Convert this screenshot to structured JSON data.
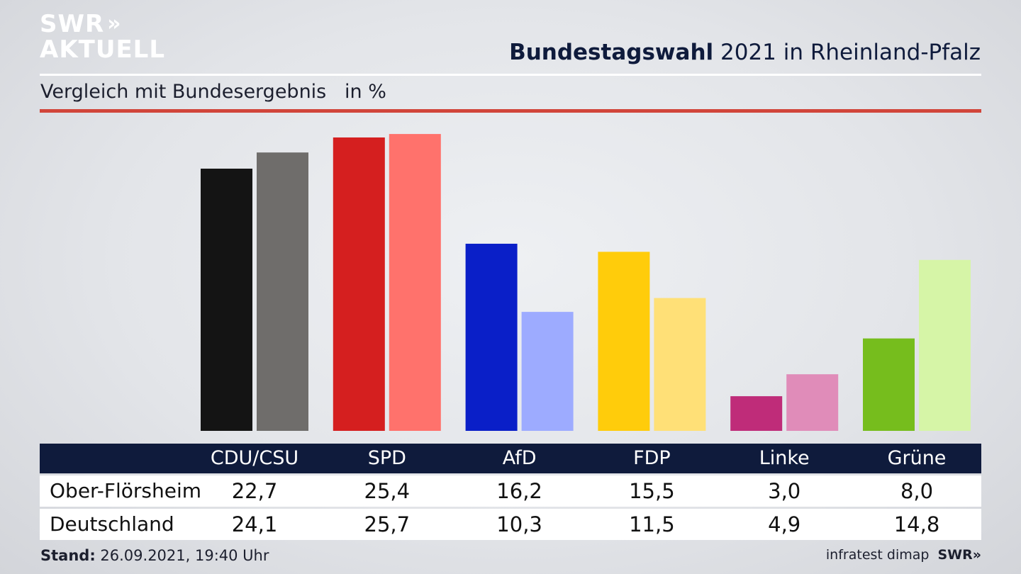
{
  "logo": {
    "line1": "SWR",
    "chevrons": "»",
    "line2": "AKTUELL"
  },
  "header": {
    "title_bold": "Bundestagswahl",
    "title_rest": " 2021 in Rheinland-Pfalz"
  },
  "subtitle": {
    "text": "Vergleich mit Bundesergebnis",
    "unit": "in %"
  },
  "footer": {
    "stand_label": "Stand:",
    "stand_value": " 26.09.2021, 19:40 Uhr",
    "source": "infratest dimap",
    "brand": "SWR»"
  },
  "colors": {
    "accent_red": "#d1453a",
    "navy": "#0f1b3c"
  },
  "chart_data": {
    "type": "bar",
    "title": "Bundestagswahl 2021 in Rheinland-Pfalz",
    "subtitle": "Vergleich mit Bundesergebnis",
    "unit": "in %",
    "categories": [
      "CDU/CSU",
      "SPD",
      "AfD",
      "FDP",
      "Linke",
      "Grüne"
    ],
    "series": [
      {
        "name": "Ober-Flörsheim",
        "values": [
          22.7,
          25.4,
          16.2,
          15.5,
          3.0,
          8.0
        ],
        "labels": [
          "22,7",
          "25,4",
          "16,2",
          "15,5",
          "3,0",
          "8,0"
        ],
        "colors": [
          "#141414",
          "#d51f1f",
          "#0a1fc8",
          "#ffcc0b",
          "#bf2c79",
          "#76bd1d"
        ]
      },
      {
        "name": "Deutschland",
        "values": [
          24.1,
          25.7,
          10.3,
          11.5,
          4.9,
          14.8
        ],
        "labels": [
          "24,1",
          "25,7",
          "10,3",
          "11,5",
          "4,9",
          "14,8"
        ],
        "colors": [
          "#6f6d6b",
          "#ff726c",
          "#9dabff",
          "#ffe077",
          "#e08cb9",
          "#d6f5a7"
        ]
      }
    ],
    "ylim": [
      0,
      26
    ]
  }
}
